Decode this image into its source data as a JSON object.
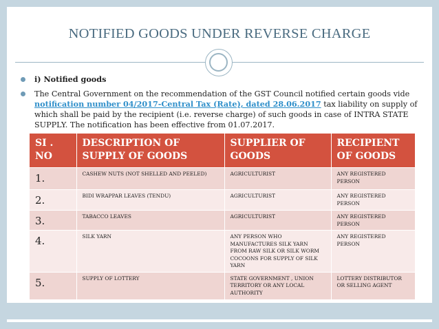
{
  "slide": {
    "title": "NOTIFIED GOODS UNDER REVERSE CHARGE",
    "bullets": {
      "heading": "i) Notified goods",
      "text_before_link": "The Central Government on the recommendation of the GST Council notified certain goods vide ",
      "link_text": "notification number 04/2017-Central Tax (Rate), dated 28.06.2017",
      "text_after_link": " tax liability on supply of which shall be paid by the recipient (i.e. reverse charge) of such goods in case of INTRA STATE SUPPLY.  The notification has been effective from 01.07.2017."
    }
  },
  "table": {
    "headers": [
      "SI .\nNO",
      "DESCRIPTION OF SUPPLY OF GOODS",
      "SUPPLIER OF GOODS",
      "RECIPIENT OF GOODS"
    ],
    "rows": [
      {
        "no": "1.",
        "description": "CASHEW NUTS (NOT SHELLED AND PEELED)",
        "supplier": "AGRICULTURIST",
        "recipient": "ANY REGISTERED PERSON"
      },
      {
        "no": "2.",
        "description": "BIDI WRAPPAR LEAVES (TENDU)",
        "supplier": "AGRICULTURIST",
        "recipient": "ANY REGISTERED PERSON"
      },
      {
        "no": "3.",
        "description": "TABACCO LEAVES",
        "supplier": "AGRICULTURIST",
        "recipient": "ANY REGISTERED PERSON"
      },
      {
        "no": "4.",
        "description": "SILK YARN",
        "supplier": "ANY PERSON WHO MANUFACTURES SILK YARN FROM RAW SILK OR SILK WORM COCOONS FOR SUPPLY OF SILK YARN",
        "recipient": "ANY REGISTERED PERSON"
      },
      {
        "no": "5.",
        "description": "SUPPLY OF LOTTERY",
        "supplier": "STATE GOVERNMENT , UNION TERRITORY OR ANY LOCAL AUTHORITY",
        "recipient": "LOTTERY DISTRIBUTOR OR SELLING AGENT"
      }
    ]
  },
  "colors": {
    "frame": "#c5d6e0",
    "title": "#4a6b80",
    "header_bg": "#d3523f",
    "row_dark": "#efd5d2",
    "row_light": "#f8eae9",
    "link": "#2f8fca",
    "bullet": "#6f9bb6"
  }
}
